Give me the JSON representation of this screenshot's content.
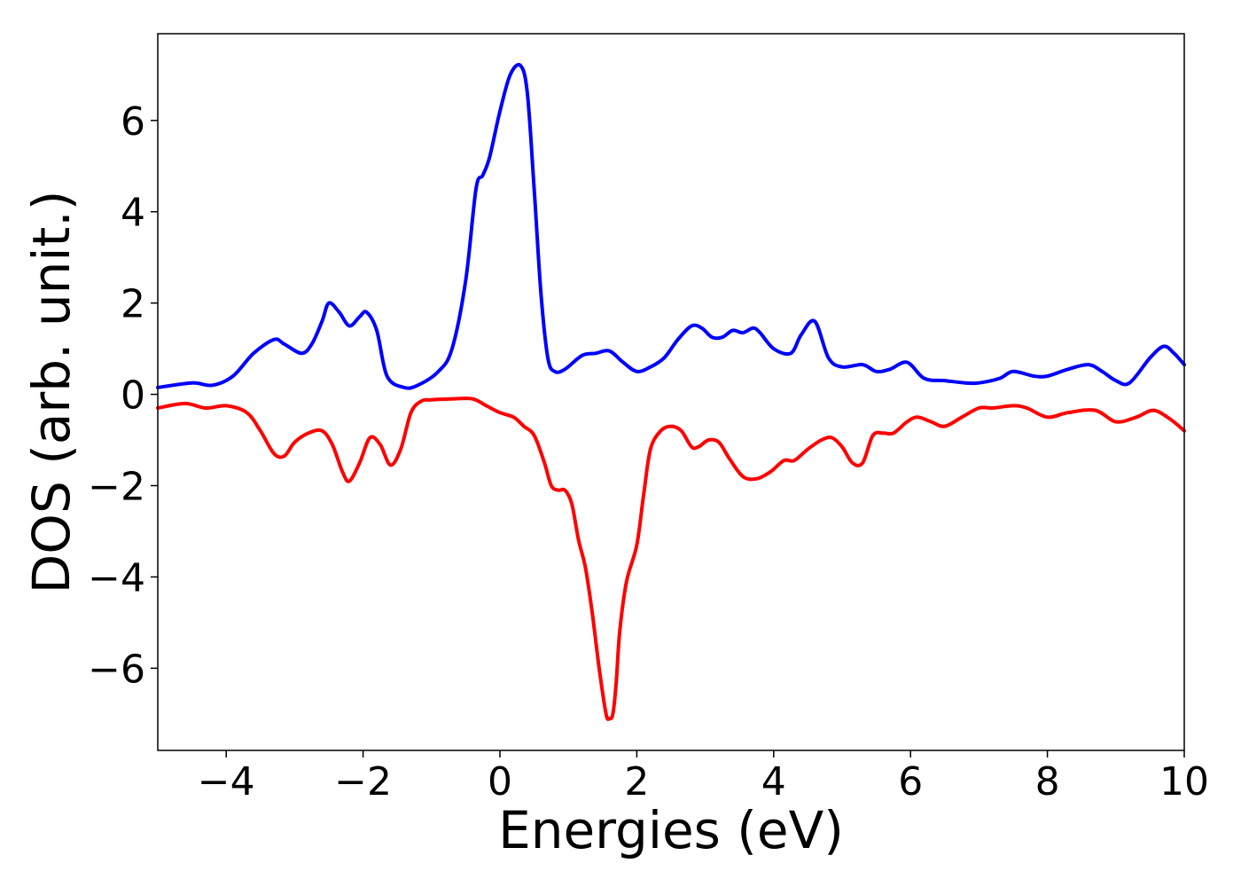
{
  "chart_data": {
    "type": "line",
    "title": "",
    "xlabel": "Energies (eV)",
    "ylabel": "DOS (arb. unit.)",
    "xlim": [
      -5,
      10
    ],
    "ylim": [
      -7.8,
      7.9
    ],
    "grid": false,
    "legend": "none",
    "x_ticks": [
      -4,
      -2,
      0,
      2,
      4,
      6,
      8,
      10
    ],
    "x_tick_labels": [
      "−4",
      "−2",
      "0",
      "2",
      "4",
      "6",
      "8",
      "10"
    ],
    "y_ticks": [
      -6,
      -4,
      -2,
      0,
      2,
      4,
      6
    ],
    "y_tick_labels": [
      "−6",
      "−4",
      "−2",
      "0",
      "2",
      "4",
      "6"
    ],
    "series": [
      {
        "color": "#0000ff",
        "x": [
          -5.0,
          -4.5,
          -4.2,
          -3.9,
          -3.6,
          -3.3,
          -3.15,
          -2.9,
          -2.75,
          -2.6,
          -2.5,
          -2.35,
          -2.2,
          -2.05,
          -1.95,
          -1.8,
          -1.65,
          -1.4,
          -1.2,
          -0.9,
          -0.7,
          -0.5,
          -0.35,
          -0.25,
          -0.15,
          0.0,
          0.15,
          0.3,
          0.4,
          0.5,
          0.6,
          0.7,
          0.8,
          0.95,
          1.2,
          1.4,
          1.6,
          1.8,
          2.0,
          2.2,
          2.4,
          2.6,
          2.8,
          2.95,
          3.1,
          3.25,
          3.4,
          3.55,
          3.7,
          3.8,
          4.0,
          4.25,
          4.4,
          4.6,
          4.8,
          5.0,
          5.3,
          5.5,
          5.7,
          5.95,
          6.2,
          6.5,
          6.8,
          7.0,
          7.3,
          7.5,
          7.8,
          8.0,
          8.3,
          8.6,
          8.8,
          9.0,
          9.2,
          9.5,
          9.7,
          9.85,
          10.0
        ],
        "y": [
          0.15,
          0.25,
          0.2,
          0.4,
          0.9,
          1.2,
          1.1,
          0.9,
          1.1,
          1.6,
          2.0,
          1.8,
          1.5,
          1.7,
          1.8,
          1.4,
          0.4,
          0.15,
          0.2,
          0.5,
          1.0,
          2.5,
          4.5,
          4.8,
          5.2,
          6.2,
          7.0,
          7.2,
          6.6,
          4.5,
          2.2,
          0.8,
          0.5,
          0.55,
          0.85,
          0.9,
          0.95,
          0.7,
          0.5,
          0.6,
          0.8,
          1.2,
          1.5,
          1.45,
          1.25,
          1.25,
          1.4,
          1.35,
          1.45,
          1.35,
          1.0,
          0.9,
          1.3,
          1.6,
          0.8,
          0.6,
          0.65,
          0.5,
          0.55,
          0.7,
          0.35,
          0.3,
          0.25,
          0.25,
          0.35,
          0.5,
          0.4,
          0.4,
          0.55,
          0.65,
          0.5,
          0.3,
          0.25,
          0.8,
          1.05,
          0.9,
          0.65
        ]
      },
      {
        "color": "#ff0000",
        "x": [
          -5.0,
          -4.6,
          -4.3,
          -4.0,
          -3.7,
          -3.5,
          -3.3,
          -3.15,
          -3.0,
          -2.8,
          -2.6,
          -2.45,
          -2.3,
          -2.2,
          -2.05,
          -1.9,
          -1.75,
          -1.6,
          -1.45,
          -1.3,
          -1.15,
          -1.0,
          -0.7,
          -0.4,
          -0.2,
          0.0,
          0.2,
          0.35,
          0.5,
          0.65,
          0.75,
          0.85,
          0.95,
          1.05,
          1.15,
          1.25,
          1.35,
          1.45,
          1.55,
          1.6,
          1.65,
          1.7,
          1.75,
          1.85,
          2.0,
          2.1,
          2.2,
          2.35,
          2.5,
          2.65,
          2.8,
          2.9,
          3.05,
          3.2,
          3.35,
          3.55,
          3.75,
          3.95,
          4.15,
          4.3,
          4.5,
          4.7,
          4.85,
          5.0,
          5.15,
          5.3,
          5.45,
          5.6,
          5.75,
          5.95,
          6.1,
          6.3,
          6.5,
          6.75,
          7.0,
          7.2,
          7.5,
          7.7,
          8.0,
          8.3,
          8.7,
          9.0,
          9.3,
          9.55,
          9.8,
          10.0
        ],
        "y": [
          -0.3,
          -0.2,
          -0.3,
          -0.25,
          -0.4,
          -0.8,
          -1.3,
          -1.35,
          -1.05,
          -0.85,
          -0.8,
          -1.1,
          -1.7,
          -1.9,
          -1.5,
          -0.95,
          -1.1,
          -1.55,
          -1.2,
          -0.4,
          -0.15,
          -0.12,
          -0.1,
          -0.1,
          -0.25,
          -0.4,
          -0.5,
          -0.7,
          -0.9,
          -1.5,
          -2.0,
          -2.1,
          -2.1,
          -2.4,
          -3.2,
          -3.8,
          -4.8,
          -6.0,
          -7.0,
          -7.1,
          -7.0,
          -6.3,
          -5.2,
          -4.1,
          -3.3,
          -2.2,
          -1.2,
          -0.8,
          -0.7,
          -0.8,
          -1.15,
          -1.15,
          -1.0,
          -1.05,
          -1.4,
          -1.8,
          -1.85,
          -1.7,
          -1.45,
          -1.45,
          -1.2,
          -1.0,
          -0.95,
          -1.15,
          -1.5,
          -1.5,
          -0.9,
          -0.85,
          -0.85,
          -0.6,
          -0.5,
          -0.6,
          -0.7,
          -0.5,
          -0.3,
          -0.3,
          -0.25,
          -0.3,
          -0.5,
          -0.4,
          -0.35,
          -0.6,
          -0.5,
          -0.35,
          -0.55,
          -0.8
        ]
      }
    ]
  }
}
